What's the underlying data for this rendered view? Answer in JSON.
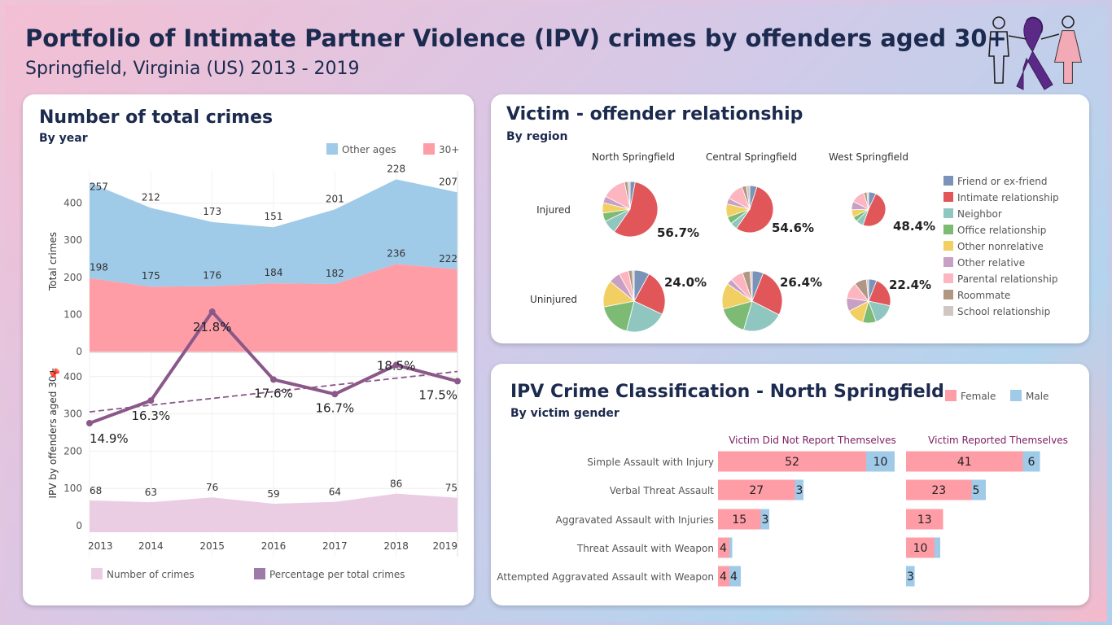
{
  "header": {
    "title": "Portfolio of Intimate Partner Violence (IPV) crimes by offenders aged 30+",
    "subtitle": "Springfield, Virginia (US) 2013 - 2019"
  },
  "panels": {
    "total": {
      "title": "Number of total crimes",
      "subtitle": "By year"
    },
    "relationship": {
      "title": "Victim - offender relationship",
      "subtitle": "By region"
    },
    "classification": {
      "title": "IPV Crime Classification - North Springfield",
      "subtitle": "By victim gender"
    }
  },
  "colors": {
    "other_ages": "#9fcae8",
    "age30": "#ff9da7",
    "crimes_area": "#ebcde3",
    "pct_line": "#8a5889",
    "female": "#ff9da7",
    "male": "#9fcae8",
    "title": "#1b2a4e",
    "col_header": "#7b1a62"
  },
  "chart_data": [
    {
      "type": "area",
      "id": "total_crimes",
      "x": [
        "2013",
        "2014",
        "2015",
        "2016",
        "2017",
        "2018",
        "2019"
      ],
      "series": [
        {
          "name": "Other ages",
          "values": [
            257,
            212,
            173,
            151,
            201,
            228,
            207
          ]
        },
        {
          "name": "30+",
          "values": [
            198,
            175,
            176,
            184,
            182,
            236,
            222
          ]
        }
      ],
      "ylabel": "Total crimes",
      "yticks": [
        0,
        100,
        200,
        300,
        400
      ],
      "ylim": [
        0,
        480
      ],
      "stacked": true,
      "legend_position": "top-right"
    },
    {
      "type": "line",
      "id": "ipv_30plus",
      "x": [
        "2013",
        "2014",
        "2015",
        "2016",
        "2017",
        "2018",
        "2019"
      ],
      "series": [
        {
          "name": "Number of crimes",
          "values": [
            68,
            63,
            76,
            59,
            64,
            86,
            75
          ]
        },
        {
          "name": "Percentage per total crimes",
          "values": [
            14.9,
            16.3,
            21.8,
            17.6,
            16.7,
            18.5,
            17.5
          ],
          "labels": [
            "14.9%",
            "16.3%",
            "21.8%",
            "17.6%",
            "16.7%",
            "18.5%",
            "17.5%"
          ]
        }
      ],
      "trend_line": [
        15.6,
        18.1
      ],
      "ylabel": "IPV by offenders aged 30+",
      "yticks": [
        0,
        100,
        200,
        300,
        400
      ],
      "ylim": [
        0,
        480
      ],
      "legend_position": "bottom"
    },
    {
      "type": "pie",
      "id": "relationship",
      "regions": [
        "North Springfield",
        "Central Springfield",
        "West Springfield"
      ],
      "rows": [
        "Injured",
        "Uninjured"
      ],
      "categories": [
        {
          "name": "Friend or ex-friend",
          "color": "#7b93b8"
        },
        {
          "name": "Intimate relationship",
          "color": "#e15759"
        },
        {
          "name": "Neighbor",
          "color": "#8fc7c0"
        },
        {
          "name": "Office relationship",
          "color": "#7dbb75"
        },
        {
          "name": "Other nonrelative",
          "color": "#f1cf63"
        },
        {
          "name": "Other relative",
          "color": "#c9a0c5"
        },
        {
          "name": "Parental relationship",
          "color": "#fdb5bf"
        },
        {
          "name": "Roommate",
          "color": "#b09683"
        },
        {
          "name": "School relationship",
          "color": "#d1c7c2"
        }
      ],
      "pies": [
        {
          "region": "North Springfield",
          "row": "Injured",
          "label": "56.7%",
          "values": [
            3,
            56.7,
            8,
            5,
            6,
            4,
            14,
            2,
            1.3
          ]
        },
        {
          "region": "Central Springfield",
          "row": "Injured",
          "label": "54.6%",
          "values": [
            5,
            54.6,
            5,
            5,
            9,
            4,
            12,
            3,
            2.4
          ]
        },
        {
          "region": "West Springfield",
          "row": "Injured",
          "label": "48.4%",
          "values": [
            7,
            48.4,
            7,
            5,
            7,
            8,
            13,
            3,
            1.6
          ]
        },
        {
          "region": "North Springfield",
          "row": "Uninjured",
          "label": "24.0%",
          "values": [
            8,
            24,
            22,
            18,
            14,
            6,
            5,
            2,
            1
          ]
        },
        {
          "region": "Central Springfield",
          "row": "Uninjured",
          "label": "26.4%",
          "values": [
            6,
            26.4,
            22,
            16,
            14,
            3,
            7,
            4,
            1.2
          ]
        },
        {
          "region": "West Springfield",
          "row": "Uninjured",
          "label": "22.4%",
          "values": [
            6,
            22.4,
            16,
            10,
            13,
            10,
            12,
            9,
            1.6
          ]
        }
      ]
    },
    {
      "type": "bar",
      "id": "classification",
      "orientation": "horizontal",
      "stacked": true,
      "categories": [
        "Simple Assault with Injury",
        "Verbal Threat Assault",
        "Aggravated Assault with Injuries",
        "Threat Assault with Weapon",
        "Attempted Aggravated Assault with Weapon"
      ],
      "columns": [
        {
          "name": "Victim Did Not Report Themselves",
          "series": [
            {
              "name": "Female",
              "values": [
                52,
                27,
                15,
                4,
                4
              ]
            },
            {
              "name": "Male",
              "values": [
                10,
                3,
                3,
                1,
                4
              ]
            }
          ],
          "labels": [
            [
              "52",
              "10"
            ],
            [
              "27",
              "3"
            ],
            [
              "15",
              "3"
            ],
            [
              "4",
              ""
            ],
            [
              "4",
              "4"
            ]
          ]
        },
        {
          "name": "Victim Reported Themselves",
          "series": [
            {
              "name": "Female",
              "values": [
                41,
                23,
                13,
                10,
                0
              ]
            },
            {
              "name": "Male",
              "values": [
                6,
                5,
                0,
                2,
                3
              ]
            }
          ],
          "labels": [
            [
              "41",
              "6"
            ],
            [
              "23",
              "5"
            ],
            [
              "13",
              ""
            ],
            [
              "10",
              ""
            ],
            [
              "",
              "3"
            ]
          ]
        }
      ],
      "legend_position": "top-right"
    }
  ]
}
